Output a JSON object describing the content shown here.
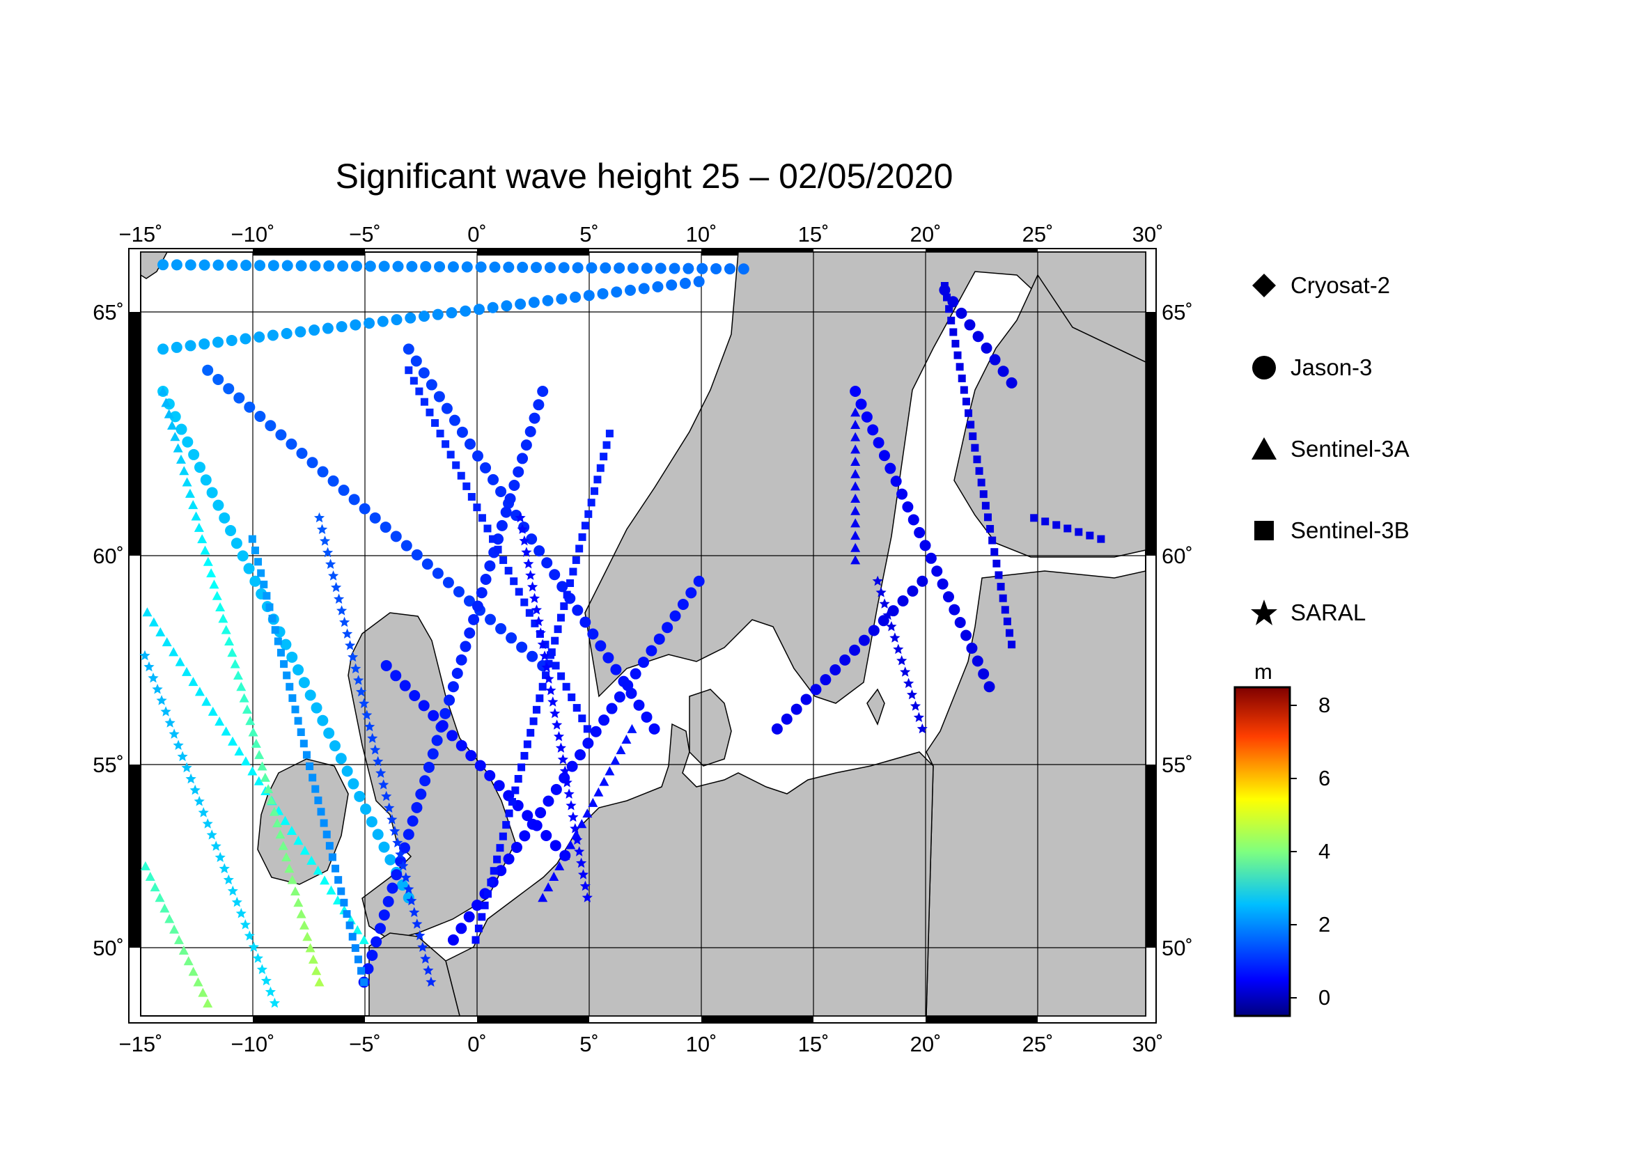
{
  "title": "Significant wave height 25 – 02/05/2020",
  "axes": {
    "lon_ticks": [
      "−15˚",
      "−10˚",
      "−5˚",
      "0˚",
      "5˚",
      "10˚",
      "15˚",
      "20˚",
      "25˚",
      "30˚"
    ],
    "lat_ticks": [
      "65˚",
      "60˚",
      "55˚",
      "50˚"
    ],
    "lon_range": [
      -15,
      30
    ],
    "lat_range": [
      48.2,
      66.3
    ]
  },
  "legend": [
    {
      "label": "Cryosat-2",
      "symbol": "diamond"
    },
    {
      "label": "Jason-3",
      "symbol": "circle"
    },
    {
      "label": "Sentinel-3A",
      "symbol": "triangle"
    },
    {
      "label": "Sentinel-3B",
      "symbol": "square"
    },
    {
      "label": "SARAL",
      "symbol": "star"
    }
  ],
  "colorbar": {
    "unit": "m",
    "ticks": [
      "8",
      "6",
      "4",
      "2",
      "0"
    ],
    "range": [
      -0.5,
      8.5
    ],
    "colormap": "jet"
  },
  "colors": {
    "land": "#bfbfbf",
    "sea": "#ffffff",
    "grid": "#000000"
  },
  "chart_data": {
    "type": "scatter",
    "title": "Significant wave height 25 – 02/05/2020",
    "x_label": "",
    "y_label": "",
    "xlim": [
      -15,
      30
    ],
    "ylim": [
      48.2,
      66.3
    ],
    "series": [
      {
        "name": "Jason-3",
        "tracks": [
          {
            "from": [
              -14,
              66.0
            ],
            "to": [
              12,
              65.9
            ],
            "swh": [
              2.0,
              1.6
            ]
          },
          {
            "from": [
              -14,
              64.0
            ],
            "to": [
              10,
              65.6
            ],
            "swh": [
              2.2,
              1.6
            ]
          },
          {
            "from": [
              -14,
              63.0
            ],
            "to": [
              -3,
              51.0
            ],
            "swh": [
              2.4,
              2.2
            ]
          },
          {
            "from": [
              -12,
              63.5
            ],
            "to": [
              3,
              56.5
            ],
            "swh": [
              1.5,
              1.0
            ]
          },
          {
            "from": [
              -3,
              64.0
            ],
            "to": [
              8,
              55.0
            ],
            "swh": [
              1.2,
              0.7
            ]
          },
          {
            "from": [
              3,
              63.0
            ],
            "to": [
              -5,
              49.0
            ],
            "swh": [
              1.0,
              0.8
            ]
          },
          {
            "from": [
              10,
              58.5
            ],
            "to": [
              -1,
              50.0
            ],
            "swh": [
              0.8,
              0.6
            ]
          },
          {
            "from": [
              -4,
              56.5
            ],
            "to": [
              4,
              52.0
            ],
            "swh": [
              0.8,
              0.6
            ]
          },
          {
            "from": [
              17,
              63.0
            ],
            "to": [
              23,
              56.0
            ],
            "swh": [
              0.6,
              0.4
            ]
          },
          {
            "from": [
              21,
              65.4
            ],
            "to": [
              24,
              63.2
            ],
            "swh": [
              0.4,
              0.4
            ]
          },
          {
            "from": [
              13.5,
              55.0
            ],
            "to": [
              20,
              58.5
            ],
            "swh": [
              0.5,
              0.4
            ]
          }
        ]
      },
      {
        "name": "Sentinel-3A",
        "tracks": [
          {
            "from": [
              -15,
              58.0
            ],
            "to": [
              -5,
              50.0
            ],
            "swh": [
              2.6,
              3.0
            ]
          },
          {
            "from": [
              -14,
              63.0
            ],
            "to": [
              -7,
              49.0
            ],
            "swh": [
              2.2,
              4.4
            ]
          },
          {
            "from": [
              -15,
              52.0
            ],
            "to": [
              -12,
              48.5
            ],
            "swh": [
              3.2,
              4.2
            ]
          },
          {
            "from": [
              7,
              55.0
            ],
            "to": [
              3,
              51.0
            ],
            "swh": [
              0.8,
              0.6
            ]
          },
          {
            "from": [
              17,
              62.5
            ],
            "to": [
              17,
              59.0
            ],
            "swh": [
              0.5,
              0.5
            ]
          }
        ]
      },
      {
        "name": "Sentinel-3B",
        "tracks": [
          {
            "from": [
              -10,
              59.5
            ],
            "to": [
              -5,
              49.0
            ],
            "swh": [
              2.0,
              1.8
            ]
          },
          {
            "from": [
              -3,
              63.5
            ],
            "to": [
              5,
              55.0
            ],
            "swh": [
              1.0,
              0.8
            ]
          },
          {
            "from": [
              6,
              62.0
            ],
            "to": [
              0,
              50.0
            ],
            "swh": [
              0.9,
              0.7
            ]
          },
          {
            "from": [
              21,
              65.5
            ],
            "to": [
              24,
              57.0
            ],
            "swh": [
              0.4,
              0.4
            ]
          },
          {
            "from": [
              25,
              60.0
            ],
            "to": [
              28,
              59.5
            ],
            "swh": [
              0.4,
              0.4
            ]
          }
        ]
      },
      {
        "name": "SARAL",
        "tracks": [
          {
            "from": [
              -15,
              57.0
            ],
            "to": [
              -9,
              48.5
            ],
            "swh": [
              2.2,
              2.6
            ]
          },
          {
            "from": [
              -7,
              60.0
            ],
            "to": [
              -2,
              49.0
            ],
            "swh": [
              1.4,
              1.0
            ]
          },
          {
            "from": [
              2,
              60.0
            ],
            "to": [
              5,
              51.0
            ],
            "swh": [
              0.7,
              0.6
            ]
          },
          {
            "from": [
              18,
              58.5
            ],
            "to": [
              20,
              55.0
            ],
            "swh": [
              0.4,
              0.4
            ]
          }
        ]
      }
    ]
  }
}
